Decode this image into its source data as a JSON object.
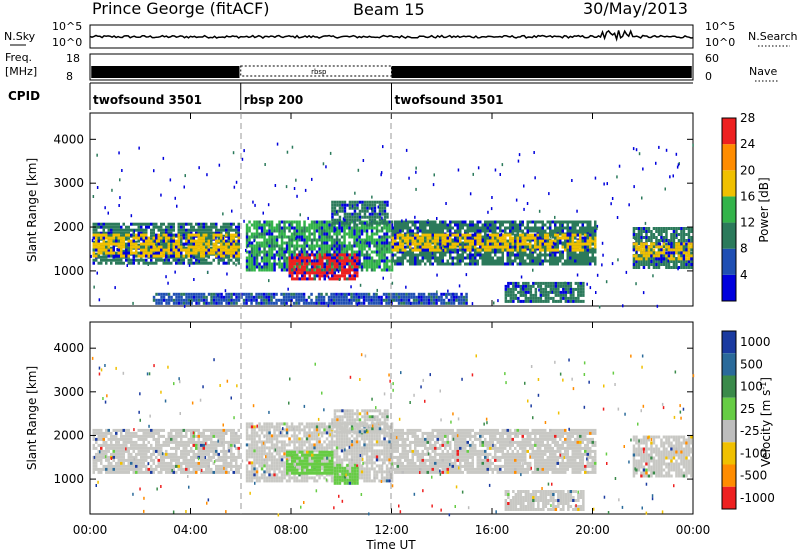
{
  "header": {
    "station": "Prince George (fitACF)",
    "beam": "Beam 15",
    "date": "30/May/2013"
  },
  "top_panels": {
    "nsky": {
      "left_label": "N.Sky",
      "left_ticks": [
        "10^5",
        "10^0"
      ],
      "right_ticks": [
        "10^5",
        "10^0"
      ],
      "right_label": "N.Search"
    },
    "freq": {
      "left_label_1": "Freq.",
      "left_label_2": "[MHz]",
      "left_ticks": [
        "18",
        "8"
      ],
      "right_ticks": [
        "60",
        "0"
      ],
      "right_label": "Nave"
    },
    "cpid": {
      "label": "CPID",
      "segments": [
        {
          "name": "twofsound 3501",
          "start_h": 0,
          "end_h": 6
        },
        {
          "name": "rbsp 200",
          "start_h": 6,
          "end_h": 12
        },
        {
          "name": "twofsound 3501",
          "start_h": 12,
          "end_h": 24
        }
      ],
      "rbsp_mark": "rbsp"
    }
  },
  "chart_data": [
    {
      "type": "heatmap",
      "title": "",
      "quantity": "Power",
      "unit": "dB",
      "xlabel": "",
      "ylabel": "Slant Range [km]",
      "xlim_hours": [
        0,
        24
      ],
      "ylim_km": [
        200,
        4600
      ],
      "yticks": [
        "1000",
        "2000",
        "3000",
        "4000"
      ],
      "colorbar_label": "Power [dB]",
      "colorbar_ticks": [
        "4",
        "8",
        "12",
        "16",
        "20",
        "24",
        "28"
      ],
      "colorbar_colors": [
        "#0000dd",
        "#1f4fb3",
        "#2b7a5b",
        "#33b34a",
        "#f0c000",
        "#ff8c00",
        "#ee2020"
      ],
      "bands": [
        {
          "t0": 0.1,
          "t1": 5.9,
          "r0": 1200,
          "r1": 2100,
          "level": 12
        },
        {
          "t0": 0.1,
          "t1": 5.9,
          "r0": 1350,
          "r1": 1850,
          "level": 20
        },
        {
          "t0": 6.2,
          "t1": 12.0,
          "r0": 1050,
          "r1": 2150,
          "level": 14
        },
        {
          "t0": 7.9,
          "t1": 10.6,
          "r0": 800,
          "r1": 1400,
          "level": 28
        },
        {
          "t0": 9.6,
          "t1": 11.8,
          "r0": 2100,
          "r1": 2600,
          "level": 10
        },
        {
          "t0": 12.0,
          "t1": 20.1,
          "r0": 1150,
          "r1": 2150,
          "level": 12
        },
        {
          "t0": 12.0,
          "t1": 20.1,
          "r0": 1450,
          "r1": 1850,
          "level": 20
        },
        {
          "t0": 16.5,
          "t1": 19.6,
          "r0": 300,
          "r1": 750,
          "level": 10
        },
        {
          "t0": 21.6,
          "t1": 23.9,
          "r0": 1100,
          "r1": 2000,
          "level": 12
        },
        {
          "t0": 21.6,
          "t1": 23.9,
          "r0": 1300,
          "r1": 1650,
          "level": 20
        },
        {
          "t0": 2.5,
          "t1": 15.0,
          "r0": 250,
          "r1": 500,
          "level": 6
        }
      ]
    },
    {
      "type": "heatmap",
      "title": "",
      "quantity": "Velocity",
      "unit": "m s^-1",
      "xlabel": "Time UT",
      "ylabel": "Slant Range [km]",
      "xlim_hours": [
        0,
        24
      ],
      "ylim_km": [
        200,
        4600
      ],
      "yticks": [
        "1000",
        "2000",
        "3000",
        "4000"
      ],
      "xticks": [
        "00:00",
        "04:00",
        "08:00",
        "12:00",
        "16:00",
        "20:00",
        "00:00"
      ],
      "colorbar_label": "Velocity [m s",
      "colorbar_sup": "-1",
      "colorbar_label_end": "]",
      "colorbar_ticks": [
        "1000",
        "500",
        "100",
        "25",
        "-25",
        "-100",
        "-500",
        "-1000"
      ],
      "colorbar_colors": [
        "#1a3aa0",
        "#2a6a9a",
        "#3a8a4a",
        "#66cc44",
        "#bdbdbd",
        "#f0c000",
        "#ff8c00",
        "#ee2020"
      ],
      "bands": [
        {
          "t0": 0.1,
          "t1": 5.9,
          "r0": 1150,
          "r1": 2150,
          "level": 0
        },
        {
          "t0": 6.2,
          "t1": 12.0,
          "r0": 950,
          "r1": 2300,
          "level": 0
        },
        {
          "t0": 7.8,
          "t1": 9.6,
          "r0": 1150,
          "r1": 1650,
          "level": 50
        },
        {
          "t0": 9.7,
          "t1": 10.6,
          "r0": 900,
          "r1": 1350,
          "level": 50
        },
        {
          "t0": 9.6,
          "t1": 11.8,
          "r0": 2100,
          "r1": 2600,
          "level": 0
        },
        {
          "t0": 12.0,
          "t1": 20.1,
          "r0": 1150,
          "r1": 2150,
          "level": 0
        },
        {
          "t0": 16.5,
          "t1": 19.6,
          "r0": 300,
          "r1": 750,
          "level": 0
        },
        {
          "t0": 21.6,
          "t1": 23.9,
          "r0": 1100,
          "r1": 2000,
          "level": 0
        }
      ]
    }
  ],
  "time_axis": {
    "xlabel": "Time UT",
    "ticks": [
      "00:00",
      "04:00",
      "08:00",
      "12:00",
      "16:00",
      "20:00",
      "00:00"
    ]
  }
}
